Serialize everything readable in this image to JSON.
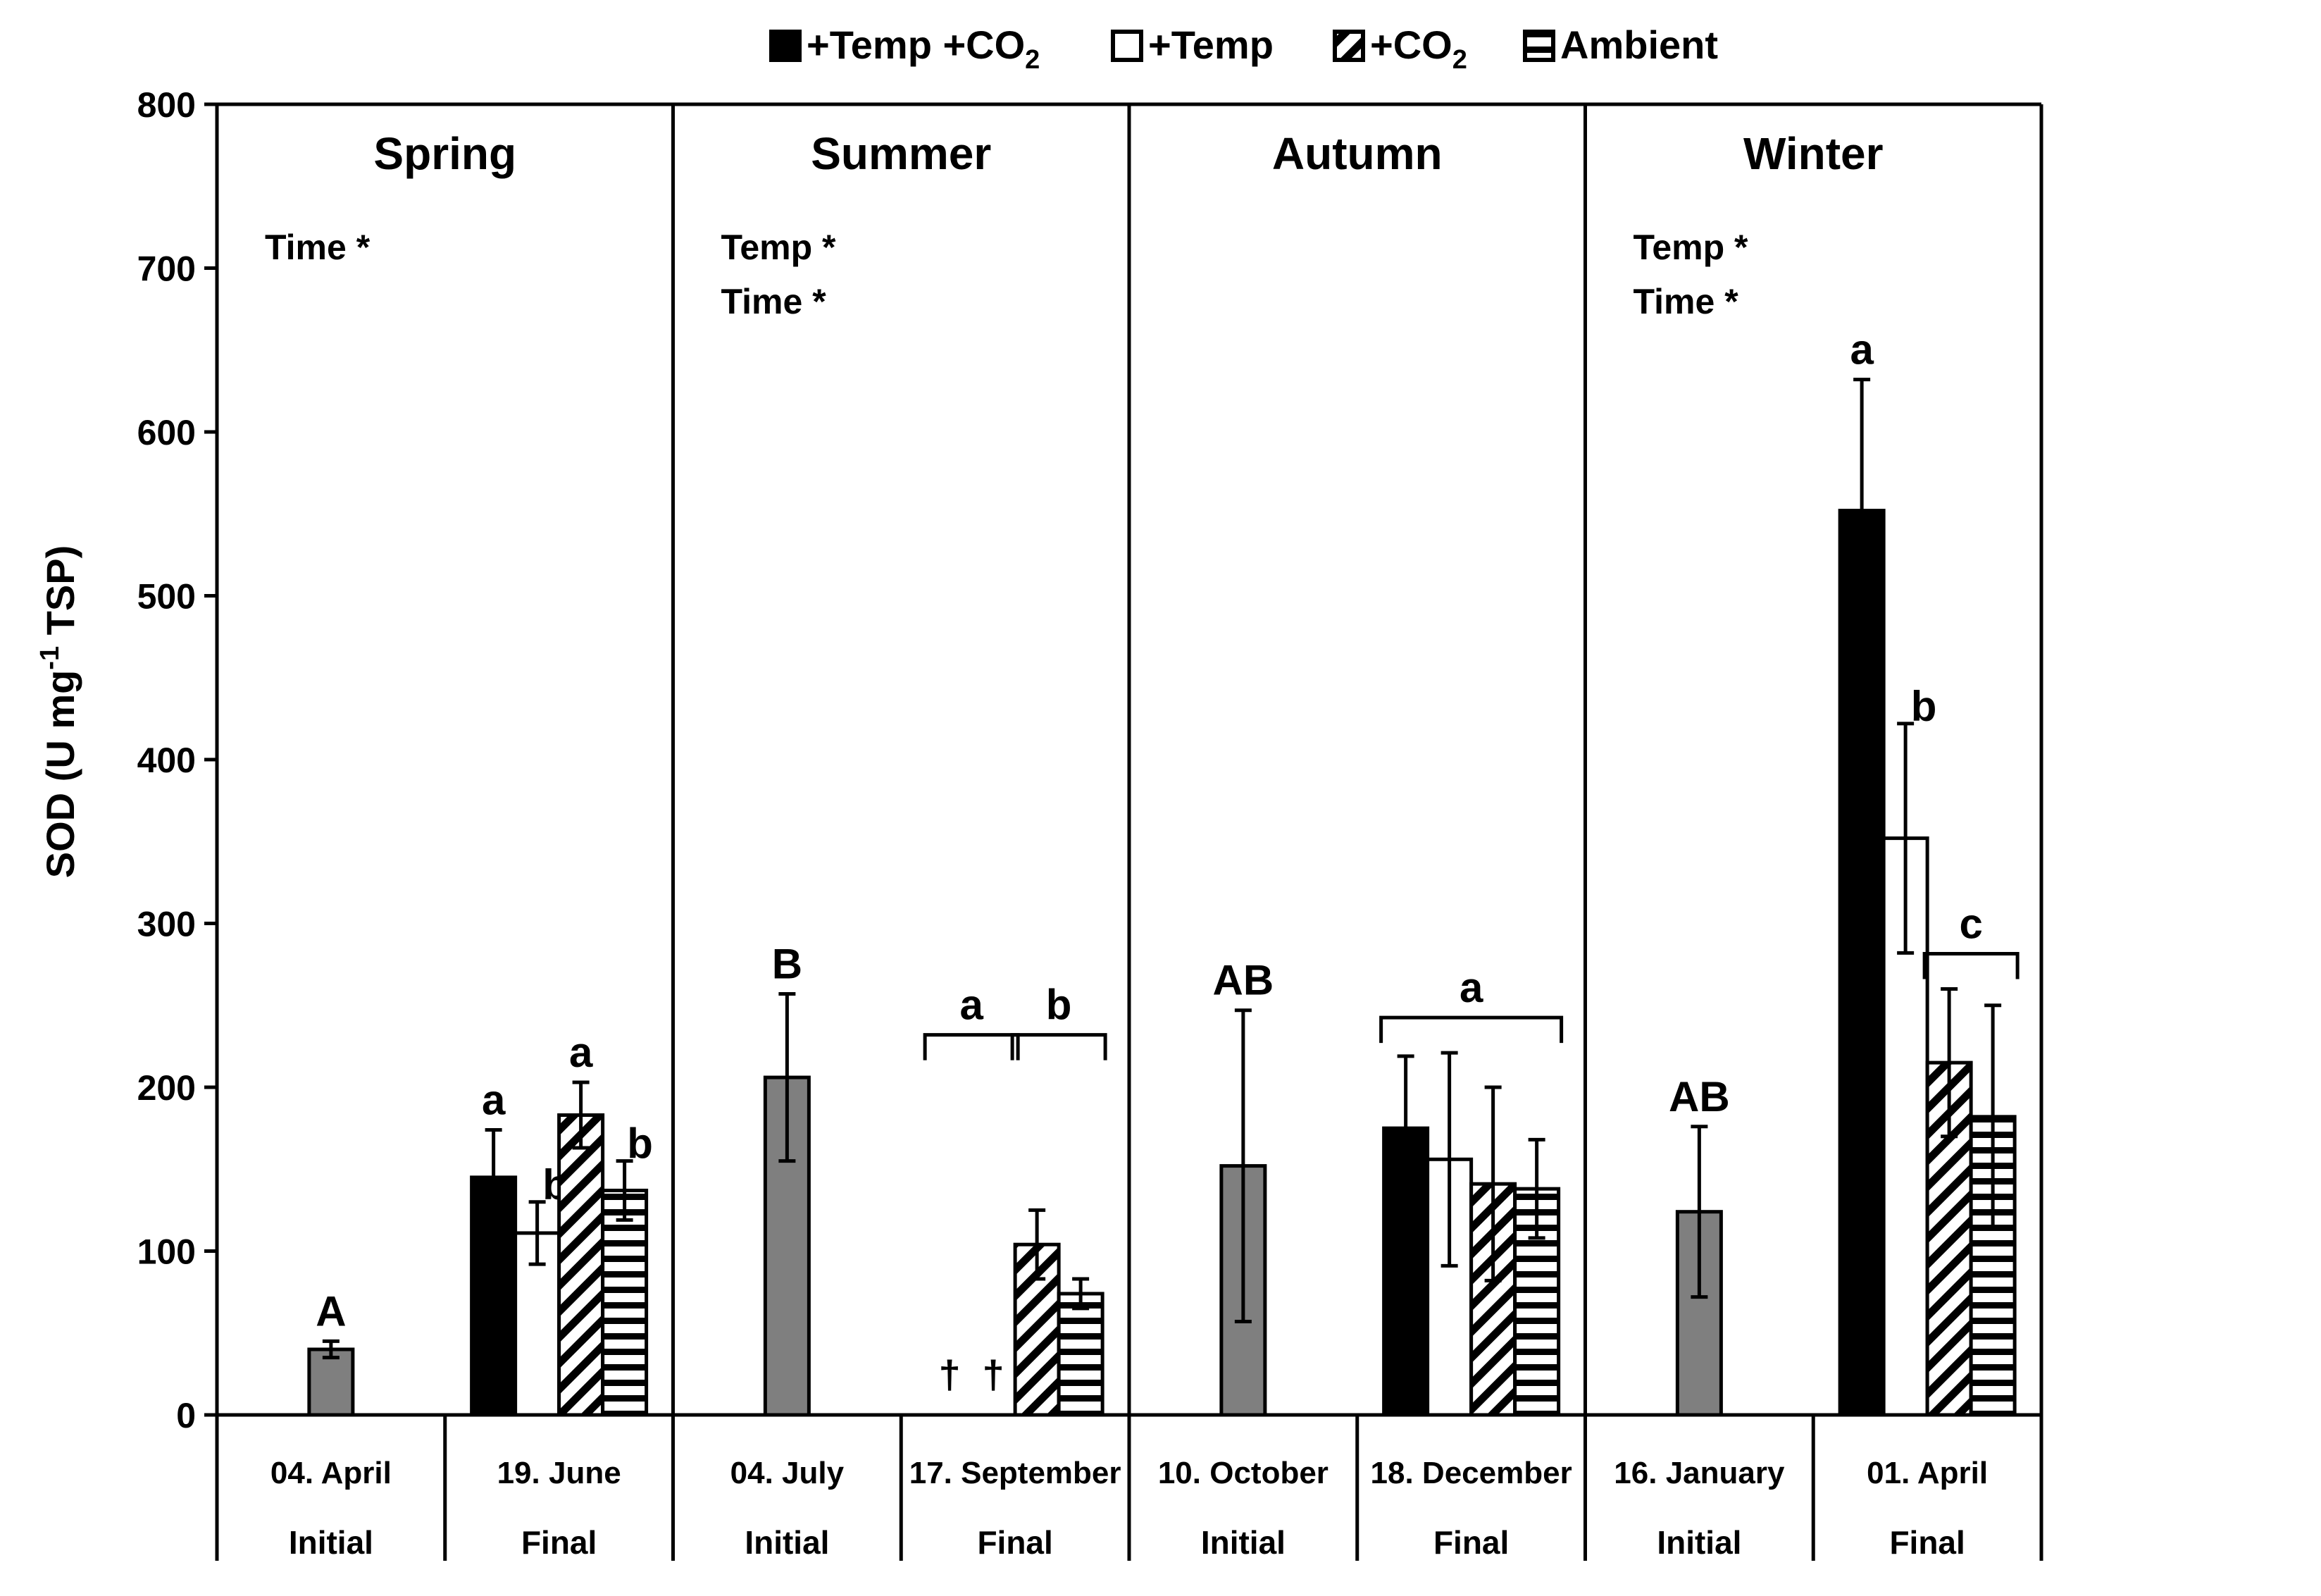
{
  "chart_data": {
    "type": "bar",
    "title": "",
    "xlabel": "",
    "ylabel": "SOD (U mg",
    "ylabel_sup": "-1",
    "ylabel_end": " TSP)",
    "ylim": [
      0,
      800
    ],
    "yticks": [
      0,
      100,
      200,
      300,
      400,
      500,
      600,
      700,
      800
    ],
    "grid": false,
    "legend_position": "top-center",
    "legend": [
      {
        "key": "tc",
        "label": "+Temp +CO",
        "sub": "2",
        "pattern": "solid-black"
      },
      {
        "key": "t",
        "label": "+Temp",
        "sub": "",
        "pattern": "white"
      },
      {
        "key": "c",
        "label": "+CO",
        "sub": "2",
        "pattern": "diagonal-hatch"
      },
      {
        "key": "a",
        "label": "Ambient",
        "sub": "",
        "pattern": "horizontal-hatch"
      }
    ],
    "seasons": [
      {
        "name": "Spring",
        "stats": [
          "Time *"
        ],
        "groups": [
          {
            "date": "04. April",
            "phase": "Initial",
            "bars": [
              {
                "series": "initial",
                "value": 40,
                "error": 5,
                "label": "A"
              }
            ]
          },
          {
            "date": "19. June",
            "phase": "Final",
            "bars": [
              {
                "series": "tc",
                "value": 145,
                "error": 29,
                "label": "a"
              },
              {
                "series": "t",
                "value": 111,
                "error": 19,
                "label": "b"
              },
              {
                "series": "c",
                "value": 183,
                "error": 20,
                "label": "a"
              },
              {
                "series": "a",
                "value": 137,
                "error": 18,
                "label": "b"
              }
            ]
          }
        ]
      },
      {
        "name": "Summer",
        "stats": [
          "Temp *",
          "Time *"
        ],
        "groups": [
          {
            "date": "04. July",
            "phase": "Initial",
            "bars": [
              {
                "series": "initial",
                "value": 206,
                "error": 51,
                "label": "B"
              }
            ]
          },
          {
            "date": "17. September",
            "phase": "Final",
            "bars": [
              {
                "series": "tc",
                "value": null,
                "error": null,
                "label": "†"
              },
              {
                "series": "t",
                "value": null,
                "error": null,
                "label": "†"
              },
              {
                "series": "c",
                "value": 104,
                "error": 21,
                "label": ""
              },
              {
                "series": "a",
                "value": 74,
                "error": 9,
                "label": ""
              }
            ],
            "brackets": [
              {
                "from": "tc",
                "to": "t",
                "label": "a"
              },
              {
                "from": "c",
                "to": "a",
                "label": "b"
              }
            ]
          }
        ]
      },
      {
        "name": "Autumn",
        "stats": [],
        "groups": [
          {
            "date": "10. October",
            "phase": "Initial",
            "bars": [
              {
                "series": "initial",
                "value": 152,
                "error": 95,
                "label": "AB"
              }
            ]
          },
          {
            "date": "18. December",
            "phase": "Final",
            "bars": [
              {
                "series": "tc",
                "value": 175,
                "error": 44,
                "label": ""
              },
              {
                "series": "t",
                "value": 156,
                "error": 65,
                "label": ""
              },
              {
                "series": "c",
                "value": 141,
                "error": 59,
                "label": ""
              },
              {
                "series": "a",
                "value": 138,
                "error": 30,
                "label": ""
              }
            ],
            "brackets": [
              {
                "from": "tc",
                "to": "a",
                "label": "a"
              }
            ]
          }
        ]
      },
      {
        "name": "Winter",
        "stats": [
          "Temp *",
          "Time *"
        ],
        "groups": [
          {
            "date": "16. January",
            "phase": "Initial",
            "bars": [
              {
                "series": "initial",
                "value": 124,
                "error": 52,
                "label": "AB"
              }
            ]
          },
          {
            "date": "01. April",
            "phase": "Final",
            "bars": [
              {
                "series": "tc",
                "value": 552,
                "error": 80,
                "label": "a"
              },
              {
                "series": "t",
                "value": 352,
                "error": 70,
                "label": "b"
              },
              {
                "series": "c",
                "value": 215,
                "error": 45,
                "label": ""
              },
              {
                "series": "a",
                "value": 182,
                "error": 68,
                "label": ""
              }
            ],
            "brackets": [
              {
                "from": "c",
                "to": "a",
                "label": "c"
              }
            ]
          }
        ]
      }
    ],
    "colors": {
      "initial": "#7f7f7f",
      "black": "#000000",
      "white": "#ffffff"
    }
  }
}
